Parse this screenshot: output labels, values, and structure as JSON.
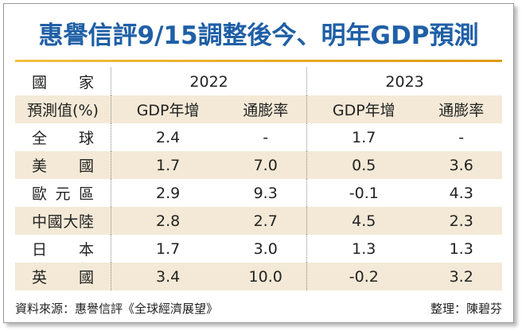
{
  "header": {
    "title": "惠譽信評9/15調整後今、明年GDP預測"
  },
  "table": {
    "head": [
      "國家",
      "2022",
      "2023"
    ],
    "subhead": [
      "預測值(%)",
      "GDP年增",
      "通膨率",
      "GDP年增",
      "通膨率"
    ],
    "rows": [
      [
        "全球",
        "2.4",
        "-",
        "1.7",
        "-"
      ],
      [
        "美國",
        "1.7",
        "7.0",
        "0.5",
        "3.6"
      ],
      [
        "歐元區",
        "2.9",
        "9.3",
        "-0.1",
        "4.3"
      ],
      [
        "中國大陸",
        "2.8",
        "2.7",
        "4.5",
        "2.3"
      ],
      [
        "日本",
        "1.7",
        "3.0",
        "1.3",
        "1.3"
      ],
      [
        "英國",
        "3.4",
        "10.0",
        "-0.2",
        "3.2"
      ]
    ]
  },
  "footer": {
    "source": "資料來源：惠譽信評《全球經濟展望》",
    "editor": "整理：陳碧芬"
  }
}
